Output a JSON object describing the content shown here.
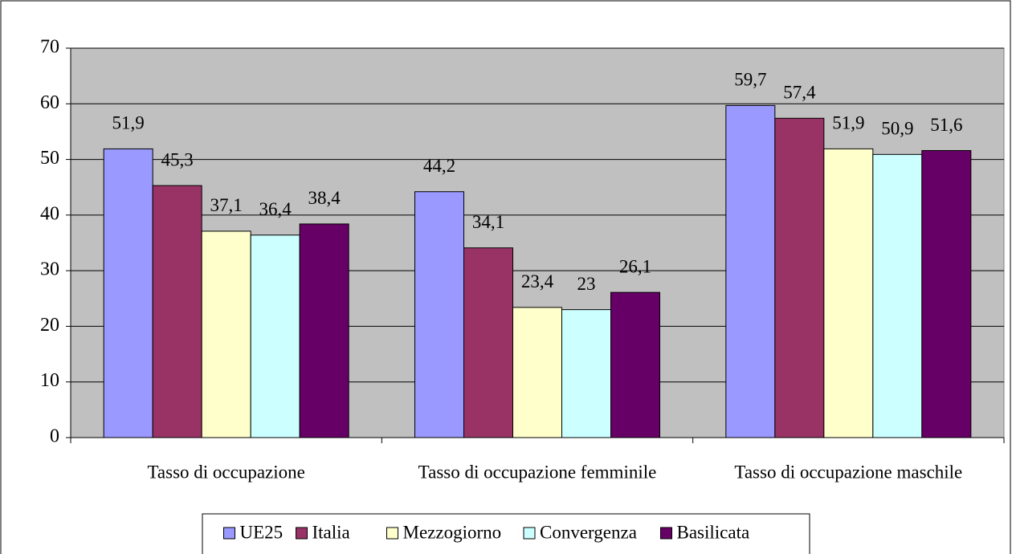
{
  "chart_data": {
    "type": "bar",
    "categories": [
      "Tasso di occupazione",
      "Tasso di occupazione femminile",
      "Tasso di occupazione maschile"
    ],
    "series": [
      {
        "name": "UE25",
        "color": "#9999ff",
        "values": [
          51.9,
          44.2,
          59.7
        ],
        "value_labels": [
          "51,9",
          "44,2",
          "59,7"
        ]
      },
      {
        "name": "Italia",
        "color": "#993366",
        "values": [
          45.3,
          34.1,
          57.4
        ],
        "value_labels": [
          "45,3",
          "34,1",
          "57,4"
        ]
      },
      {
        "name": "Mezzogiorno",
        "color": "#ffffcc",
        "values": [
          37.1,
          23.4,
          51.9
        ],
        "value_labels": [
          "37,1",
          "23,4",
          "51,9"
        ]
      },
      {
        "name": "Convergenza",
        "color": "#ccffff",
        "values": [
          36.4,
          23,
          50.9
        ],
        "value_labels": [
          "36,4",
          "23",
          "50,9"
        ]
      },
      {
        "name": "Basilicata",
        "color": "#660066",
        "values": [
          38.4,
          26.1,
          51.6
        ],
        "value_labels": [
          "38,4",
          "26,1",
          "51,6"
        ]
      }
    ],
    "ylim": [
      0,
      70
    ],
    "yticks": [
      0,
      10,
      20,
      30,
      40,
      50,
      60,
      70
    ],
    "grid": true,
    "legend": "bottom"
  }
}
